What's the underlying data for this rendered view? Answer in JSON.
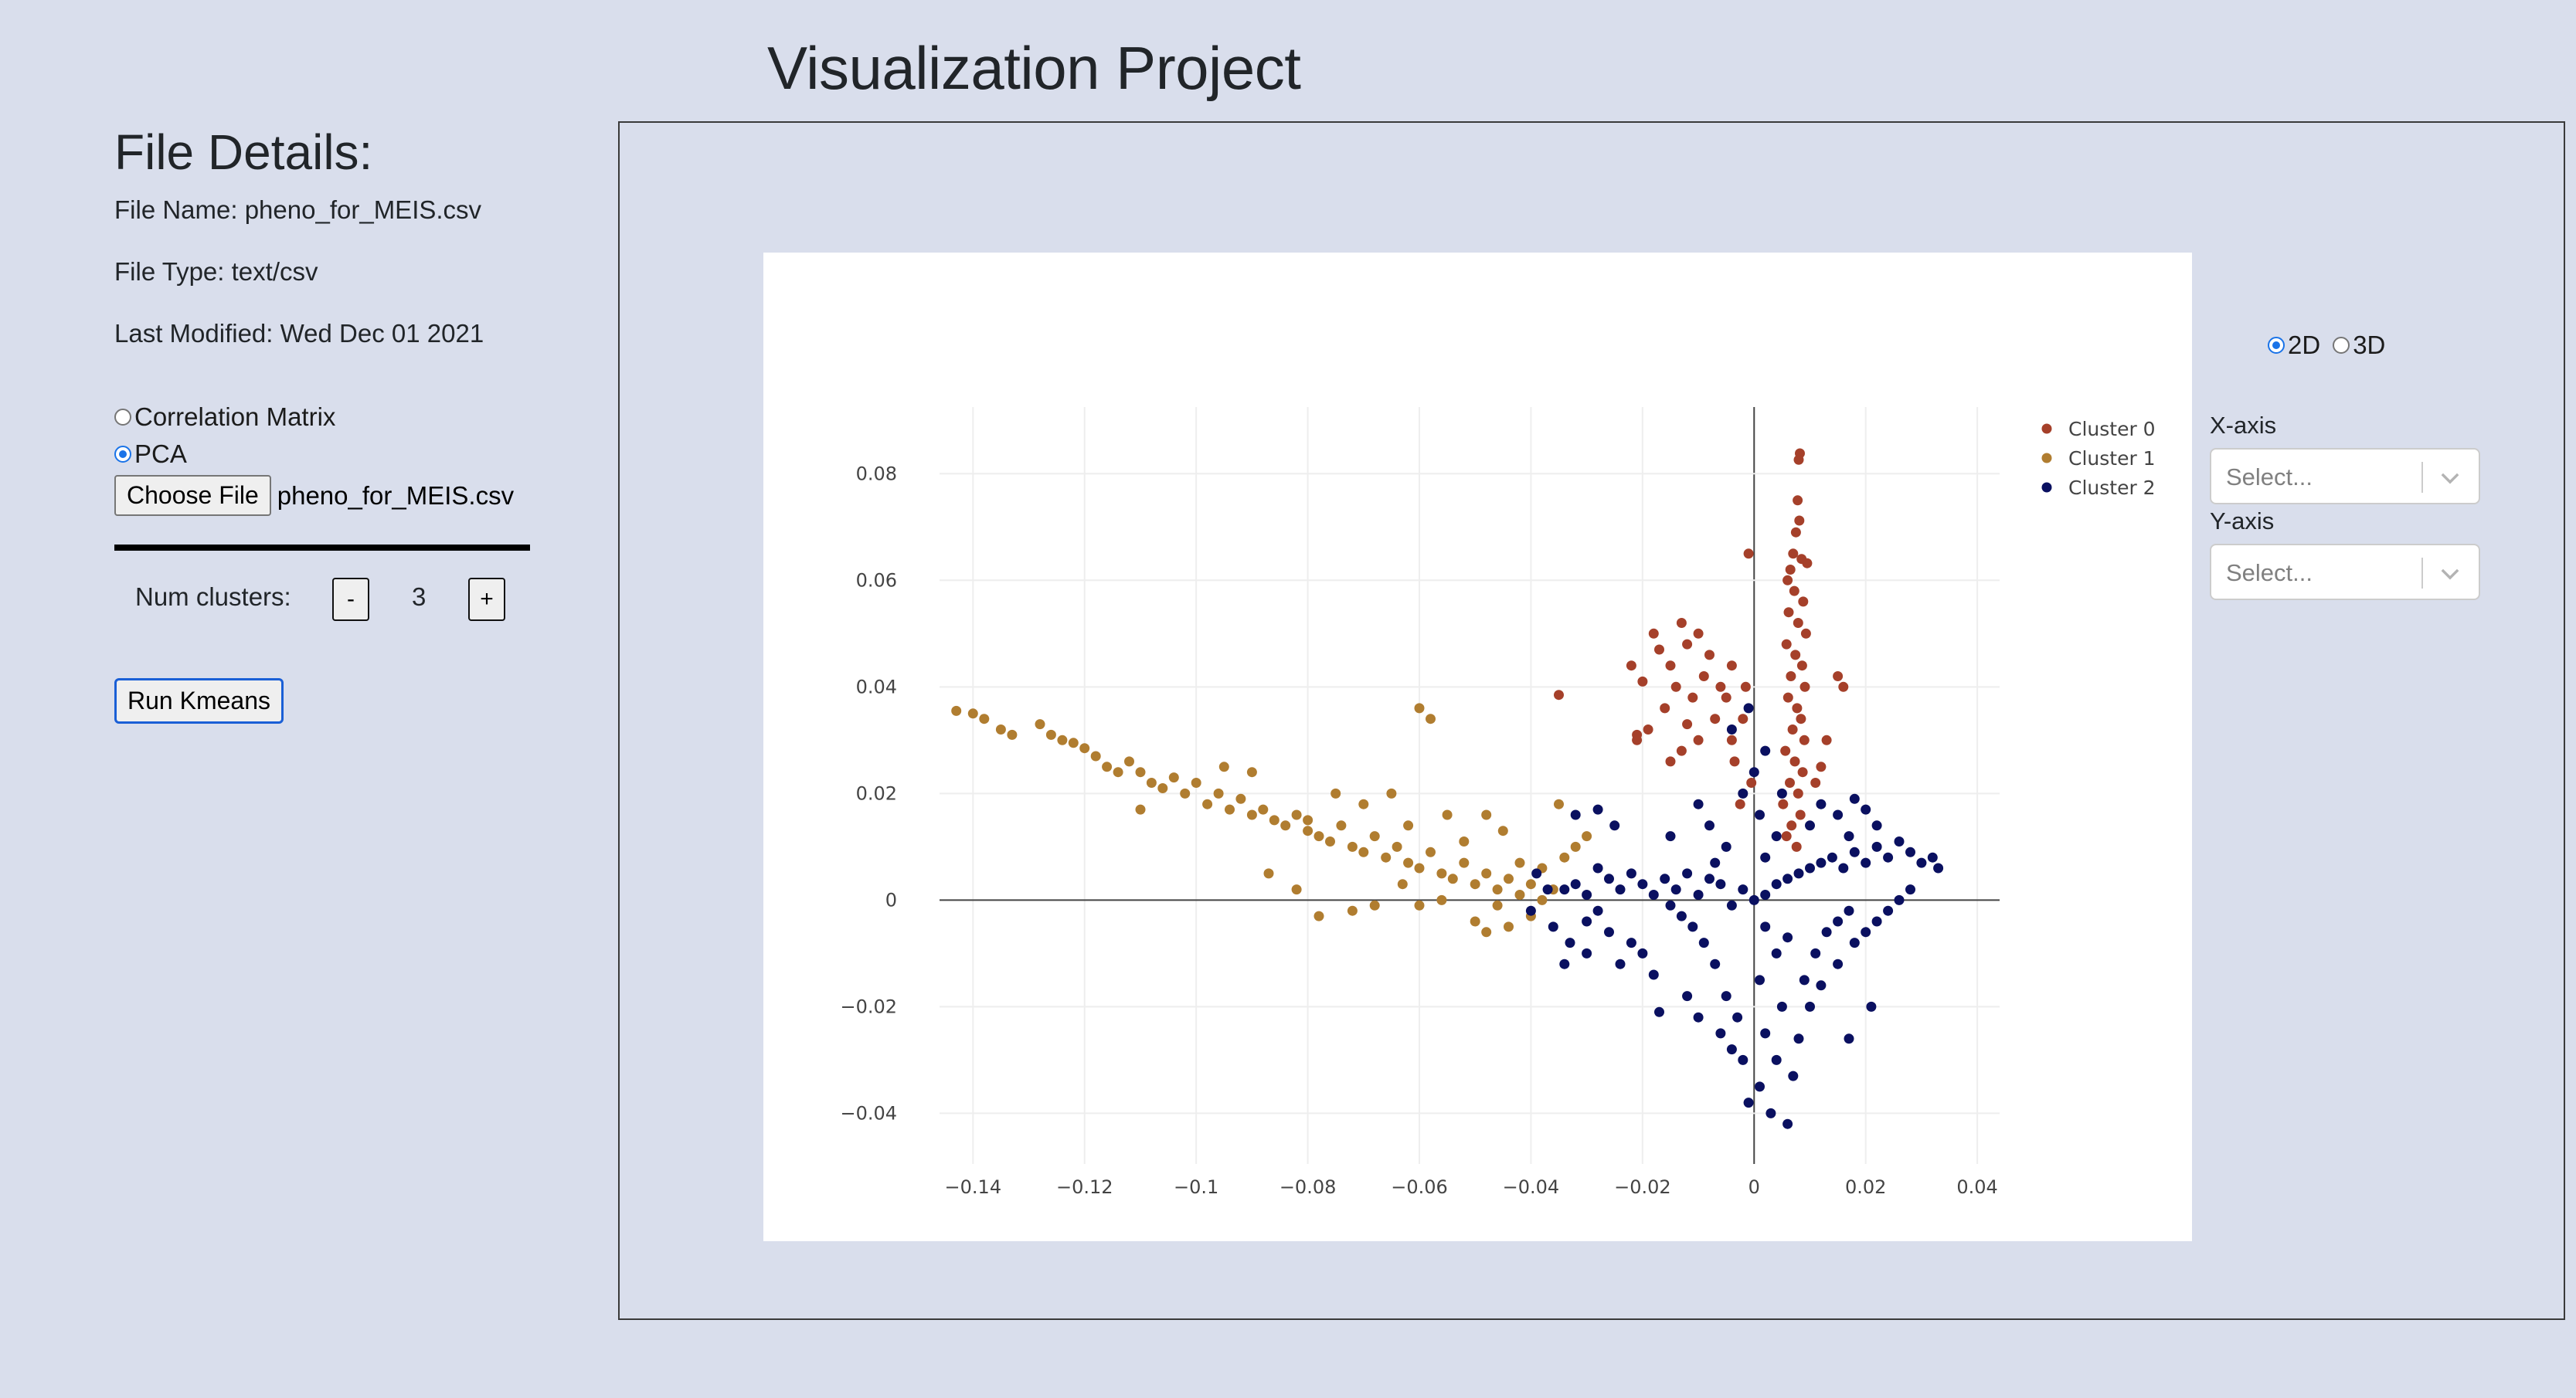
{
  "header": {
    "title": "Visualization Project"
  },
  "sidebar": {
    "heading": "File Details:",
    "file_name": "File Name: pheno_for_MEIS.csv",
    "file_type": "File Type: text/csv",
    "last_modified": "Last Modified: Wed Dec 01 2021",
    "mode_options": [
      {
        "label": "Correlation Matrix",
        "checked": false
      },
      {
        "label": "PCA",
        "checked": true
      }
    ],
    "choose_file_label": "Choose File",
    "chosen_file": "pheno_for_MEIS.csv",
    "num_clusters_label": "Num clusters:",
    "minus_label": "-",
    "plus_label": "+",
    "num_clusters_value": "3",
    "run_button_label": "Run Kmeans"
  },
  "controls": {
    "dim_options": [
      {
        "label": "2D",
        "checked": true
      },
      {
        "label": "3D",
        "checked": false
      }
    ],
    "x_axis": {
      "label": "X-axis",
      "placeholder": "Select..."
    },
    "y_axis": {
      "label": "Y-axis",
      "placeholder": "Select..."
    }
  },
  "chart_data": {
    "type": "scatter",
    "title": "",
    "xlabel": "",
    "ylabel": "",
    "xlim": [
      -0.146,
      0.044
    ],
    "ylim": [
      -0.0495,
      0.0925
    ],
    "x_ticks": [
      -0.14,
      -0.12,
      -0.1,
      -0.08,
      -0.06,
      -0.04,
      -0.02,
      0,
      0.02,
      0.04
    ],
    "x_tick_labels": [
      "−0.14",
      "−0.12",
      "−0.1",
      "−0.08",
      "−0.06",
      "−0.04",
      "−0.02",
      "0",
      "0.02",
      "0.04"
    ],
    "y_ticks": [
      -0.04,
      -0.02,
      0,
      0.02,
      0.04,
      0.06,
      0.08
    ],
    "y_tick_labels": [
      "−0.04",
      "−0.02",
      "0",
      "0.02",
      "0.04",
      "0.06",
      "0.08"
    ],
    "grid": true,
    "zero_lines": true,
    "legend_position": "top-right",
    "series": [
      {
        "name": "Cluster 0",
        "color": "#a5402a",
        "points": [
          [
            0.0082,
            0.0838
          ],
          [
            0.008,
            0.0826
          ],
          [
            0.0078,
            0.075
          ],
          [
            0.0081,
            0.0712
          ],
          [
            0.0075,
            0.069
          ],
          [
            0.007,
            0.065
          ],
          [
            0.0085,
            0.064
          ],
          [
            0.0065,
            0.062
          ],
          [
            0.0095,
            0.0632
          ],
          [
            0.006,
            0.06
          ],
          [
            0.0072,
            0.058
          ],
          [
            0.0088,
            0.056
          ],
          [
            0.0062,
            0.054
          ],
          [
            0.0079,
            0.052
          ],
          [
            0.0093,
            0.05
          ],
          [
            0.0058,
            0.048
          ],
          [
            0.0074,
            0.046
          ],
          [
            0.0086,
            0.044
          ],
          [
            0.0066,
            0.042
          ],
          [
            0.0091,
            0.04
          ],
          [
            0.0061,
            0.038
          ],
          [
            0.0077,
            0.036
          ],
          [
            0.0084,
            0.034
          ],
          [
            0.0069,
            0.032
          ],
          [
            0.009,
            0.03
          ],
          [
            0.0056,
            0.028
          ],
          [
            0.0073,
            0.026
          ],
          [
            0.0087,
            0.024
          ],
          [
            0.0064,
            0.022
          ],
          [
            0.0079,
            0.02
          ],
          [
            0.0052,
            0.018
          ],
          [
            0.0083,
            0.016
          ],
          [
            0.0067,
            0.014
          ],
          [
            0.0058,
            0.012
          ],
          [
            0.0076,
            0.01
          ],
          [
            -0.001,
            0.065
          ],
          [
            -0.018,
            0.05
          ],
          [
            -0.017,
            0.047
          ],
          [
            -0.015,
            0.044
          ],
          [
            -0.013,
            0.052
          ],
          [
            -0.012,
            0.048
          ],
          [
            -0.01,
            0.05
          ],
          [
            -0.009,
            0.042
          ],
          [
            -0.008,
            0.046
          ],
          [
            -0.014,
            0.04
          ],
          [
            -0.011,
            0.038
          ],
          [
            -0.016,
            0.036
          ],
          [
            -0.006,
            0.04
          ],
          [
            -0.005,
            0.038
          ],
          [
            -0.012,
            0.033
          ],
          [
            -0.007,
            0.034
          ],
          [
            -0.004,
            0.03
          ],
          [
            -0.01,
            0.03
          ],
          [
            -0.013,
            0.028
          ],
          [
            -0.002,
            0.034
          ],
          [
            -0.019,
            0.032
          ],
          [
            -0.021,
            0.03
          ],
          [
            -0.0035,
            0.026
          ],
          [
            -0.0005,
            0.022
          ],
          [
            -0.0025,
            0.018
          ],
          [
            -0.015,
            0.026
          ],
          [
            -0.022,
            0.044
          ],
          [
            -0.02,
            0.041
          ],
          [
            -0.004,
            0.044
          ],
          [
            -0.0015,
            0.04
          ],
          [
            -0.035,
            0.0385
          ],
          [
            -0.021,
            0.031
          ],
          [
            0.012,
            0.025
          ],
          [
            0.015,
            0.042
          ],
          [
            0.016,
            0.04
          ],
          [
            0.013,
            0.03
          ],
          [
            0.011,
            0.022
          ]
        ]
      },
      {
        "name": "Cluster 1",
        "color": "#b07d30",
        "points": [
          [
            -0.143,
            0.0355
          ],
          [
            -0.14,
            0.035
          ],
          [
            -0.138,
            0.034
          ],
          [
            -0.135,
            0.032
          ],
          [
            -0.133,
            0.031
          ],
          [
            -0.128,
            0.033
          ],
          [
            -0.126,
            0.031
          ],
          [
            -0.124,
            0.03
          ],
          [
            -0.122,
            0.0295
          ],
          [
            -0.12,
            0.0285
          ],
          [
            -0.118,
            0.027
          ],
          [
            -0.116,
            0.025
          ],
          [
            -0.114,
            0.024
          ],
          [
            -0.112,
            0.026
          ],
          [
            -0.11,
            0.024
          ],
          [
            -0.108,
            0.022
          ],
          [
            -0.106,
            0.021
          ],
          [
            -0.104,
            0.023
          ],
          [
            -0.102,
            0.02
          ],
          [
            -0.1,
            0.022
          ],
          [
            -0.098,
            0.018
          ],
          [
            -0.096,
            0.02
          ],
          [
            -0.094,
            0.017
          ],
          [
            -0.092,
            0.019
          ],
          [
            -0.09,
            0.016
          ],
          [
            -0.088,
            0.017
          ],
          [
            -0.086,
            0.015
          ],
          [
            -0.084,
            0.014
          ],
          [
            -0.082,
            0.016
          ],
          [
            -0.08,
            0.013
          ],
          [
            -0.078,
            0.012
          ],
          [
            -0.076,
            0.011
          ],
          [
            -0.074,
            0.014
          ],
          [
            -0.072,
            0.01
          ],
          [
            -0.07,
            0.009
          ],
          [
            -0.068,
            0.012
          ],
          [
            -0.066,
            0.008
          ],
          [
            -0.064,
            0.01
          ],
          [
            -0.062,
            0.007
          ],
          [
            -0.06,
            0.006
          ],
          [
            -0.058,
            0.009
          ],
          [
            -0.056,
            0.005
          ],
          [
            -0.054,
            0.004
          ],
          [
            -0.052,
            0.007
          ],
          [
            -0.05,
            0.003
          ],
          [
            -0.048,
            0.005
          ],
          [
            -0.046,
            0.002
          ],
          [
            -0.044,
            0.004
          ],
          [
            -0.042,
            0.001
          ],
          [
            -0.04,
            0.003
          ],
          [
            -0.038,
            0.006
          ],
          [
            -0.036,
            0.002
          ],
          [
            -0.034,
            0.008
          ],
          [
            -0.032,
            0.01
          ],
          [
            -0.03,
            0.012
          ],
          [
            -0.06,
            0.036
          ],
          [
            -0.058,
            0.034
          ],
          [
            -0.08,
            0.015
          ],
          [
            -0.11,
            0.017
          ],
          [
            -0.075,
            0.02
          ],
          [
            -0.095,
            0.025
          ],
          [
            -0.065,
            0.02
          ],
          [
            -0.055,
            0.016
          ],
          [
            -0.045,
            0.013
          ],
          [
            -0.035,
            0.018
          ],
          [
            -0.09,
            0.024
          ],
          [
            -0.07,
            0.018
          ],
          [
            -0.062,
            0.014
          ],
          [
            -0.052,
            0.011
          ],
          [
            -0.048,
            0.016
          ],
          [
            -0.082,
            0.002
          ],
          [
            -0.078,
            -0.003
          ],
          [
            -0.072,
            -0.002
          ],
          [
            -0.068,
            -0.001
          ],
          [
            -0.06,
            -0.001
          ],
          [
            -0.05,
            -0.004
          ],
          [
            -0.048,
            -0.006
          ],
          [
            -0.044,
            -0.005
          ],
          [
            -0.04,
            -0.003
          ],
          [
            -0.038,
            0.0
          ],
          [
            -0.087,
            0.005
          ],
          [
            -0.063,
            0.003
          ],
          [
            -0.056,
            0.0
          ],
          [
            -0.046,
            -0.001
          ],
          [
            -0.042,
            0.007
          ]
        ]
      },
      {
        "name": "Cluster 2",
        "color": "#0a1060",
        "points": [
          [
            0.0,
            0.0
          ],
          [
            0.002,
            0.001
          ],
          [
            -0.002,
            0.002
          ],
          [
            0.004,
            0.003
          ],
          [
            -0.004,
            -0.001
          ],
          [
            0.006,
            0.004
          ],
          [
            -0.006,
            0.003
          ],
          [
            0.008,
            0.005
          ],
          [
            -0.008,
            0.004
          ],
          [
            0.01,
            0.006
          ],
          [
            -0.01,
            0.001
          ],
          [
            0.012,
            0.007
          ],
          [
            -0.012,
            0.005
          ],
          [
            0.014,
            0.008
          ],
          [
            -0.014,
            0.002
          ],
          [
            0.016,
            0.006
          ],
          [
            -0.016,
            0.004
          ],
          [
            0.018,
            0.009
          ],
          [
            -0.018,
            0.001
          ],
          [
            0.02,
            0.007
          ],
          [
            -0.02,
            0.003
          ],
          [
            0.022,
            0.01
          ],
          [
            -0.022,
            0.005
          ],
          [
            0.024,
            0.008
          ],
          [
            -0.024,
            0.002
          ],
          [
            0.026,
            0.011
          ],
          [
            -0.026,
            0.004
          ],
          [
            0.028,
            0.009
          ],
          [
            -0.028,
            0.006
          ],
          [
            0.03,
            0.007
          ],
          [
            -0.03,
            0.001
          ],
          [
            0.032,
            0.008
          ],
          [
            -0.032,
            0.003
          ],
          [
            0.033,
            0.006
          ],
          [
            -0.034,
            0.002
          ],
          [
            0.002,
            -0.005
          ],
          [
            0.004,
            -0.01
          ],
          [
            0.001,
            -0.015
          ],
          [
            0.005,
            -0.02
          ],
          [
            0.002,
            -0.025
          ],
          [
            0.004,
            -0.03
          ],
          [
            0.001,
            -0.035
          ],
          [
            0.003,
            -0.04
          ],
          [
            0.006,
            -0.042
          ],
          [
            -0.001,
            -0.038
          ],
          [
            -0.002,
            -0.03
          ],
          [
            0.007,
            -0.033
          ],
          [
            -0.003,
            -0.022
          ],
          [
            0.008,
            -0.026
          ],
          [
            -0.005,
            -0.018
          ],
          [
            0.009,
            -0.015
          ],
          [
            -0.007,
            -0.012
          ],
          [
            0.011,
            -0.01
          ],
          [
            -0.009,
            -0.008
          ],
          [
            0.013,
            -0.006
          ],
          [
            -0.011,
            -0.005
          ],
          [
            0.015,
            -0.004
          ],
          [
            -0.013,
            -0.003
          ],
          [
            0.017,
            -0.002
          ],
          [
            -0.015,
            -0.001
          ],
          [
            -0.02,
            -0.01
          ],
          [
            -0.018,
            -0.014
          ],
          [
            -0.022,
            -0.008
          ],
          [
            -0.026,
            -0.006
          ],
          [
            -0.03,
            -0.004
          ],
          [
            -0.028,
            -0.002
          ],
          [
            -0.024,
            -0.012
          ],
          [
            -0.012,
            -0.018
          ],
          [
            -0.01,
            -0.022
          ],
          [
            -0.006,
            -0.025
          ],
          [
            -0.004,
            -0.028
          ],
          [
            0.01,
            -0.02
          ],
          [
            0.012,
            -0.016
          ],
          [
            0.015,
            -0.012
          ],
          [
            0.018,
            -0.008
          ],
          [
            0.02,
            -0.006
          ],
          [
            0.022,
            -0.004
          ],
          [
            0.024,
            -0.002
          ],
          [
            0.026,
            0.0
          ],
          [
            0.028,
            0.002
          ],
          [
            0.002,
            0.008
          ],
          [
            0.004,
            0.012
          ],
          [
            0.001,
            0.016
          ],
          [
            0.005,
            0.02
          ],
          [
            -0.005,
            0.01
          ],
          [
            -0.008,
            0.014
          ],
          [
            -0.01,
            0.018
          ],
          [
            -0.015,
            0.012
          ],
          [
            0.01,
            0.014
          ],
          [
            0.012,
            0.018
          ],
          [
            0.015,
            0.016
          ],
          [
            0.018,
            0.019
          ],
          [
            0.02,
            0.017
          ],
          [
            0.022,
            0.014
          ],
          [
            0.017,
            0.012
          ],
          [
            -0.032,
            0.016
          ],
          [
            -0.028,
            0.017
          ],
          [
            -0.025,
            0.014
          ],
          [
            -0.034,
            -0.012
          ],
          [
            -0.03,
            -0.01
          ],
          [
            -0.039,
            0.005
          ],
          [
            -0.037,
            0.002
          ],
          [
            -0.04,
            -0.002
          ],
          [
            -0.036,
            -0.005
          ],
          [
            -0.033,
            -0.008
          ],
          [
            -0.002,
            0.02
          ],
          [
            0.0,
            0.024
          ],
          [
            -0.004,
            0.032
          ],
          [
            0.002,
            0.028
          ],
          [
            -0.001,
            0.036
          ],
          [
            0.021,
            -0.02
          ],
          [
            0.017,
            -0.026
          ],
          [
            -0.017,
            -0.021
          ],
          [
            0.006,
            -0.007
          ],
          [
            -0.007,
            0.007
          ]
        ]
      }
    ]
  }
}
